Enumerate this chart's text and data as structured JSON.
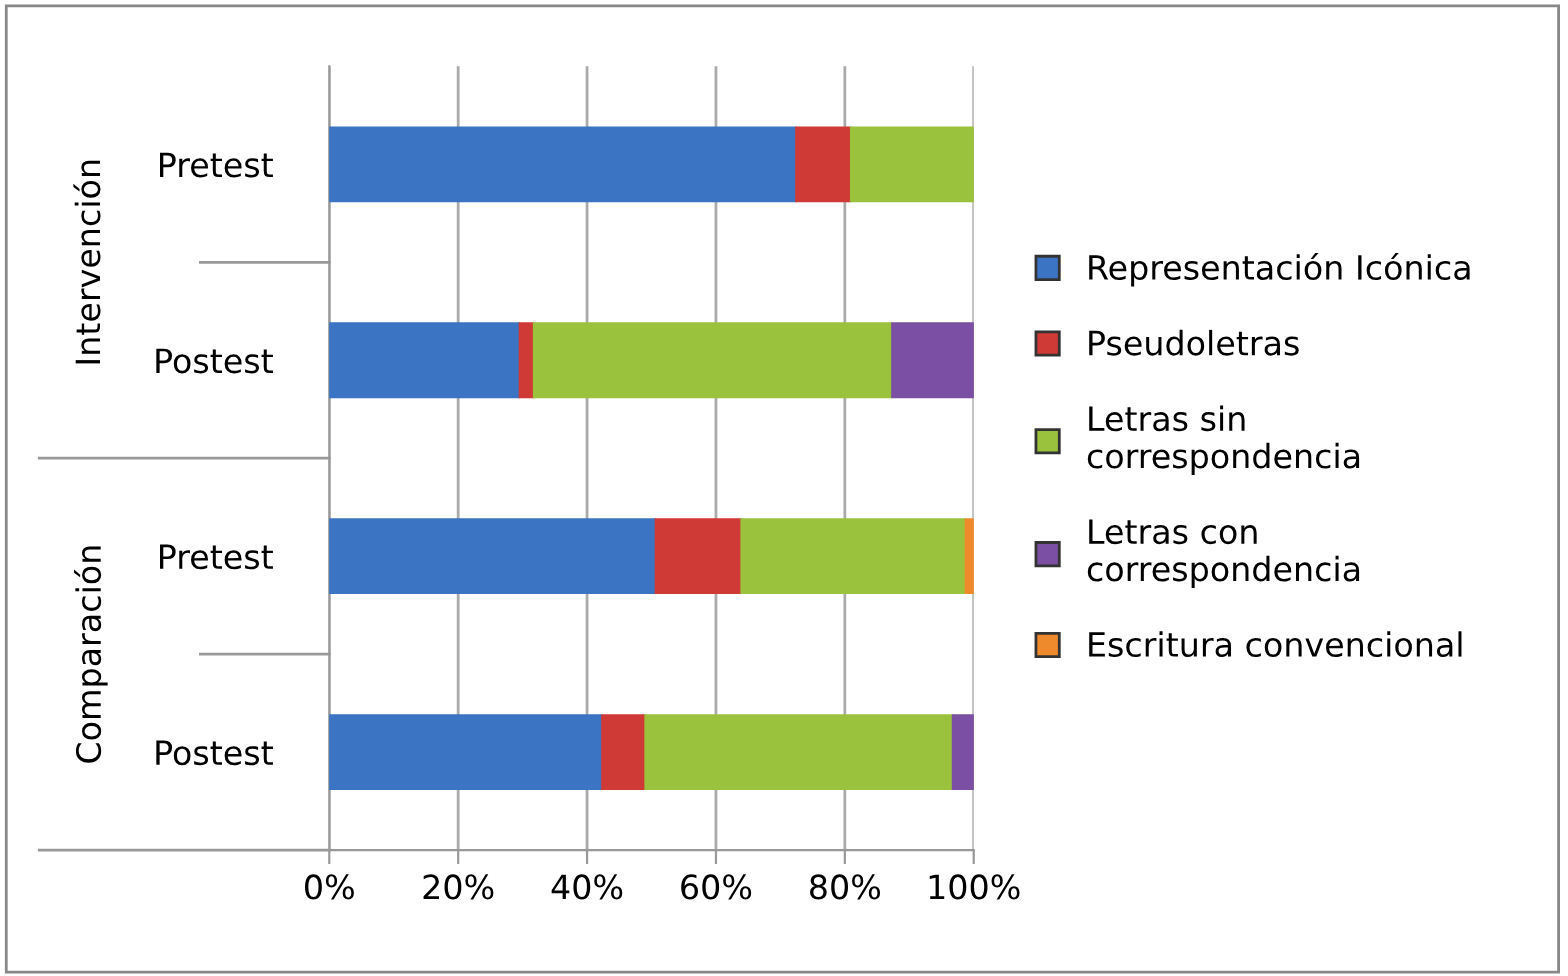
{
  "chart_data": {
    "type": "bar",
    "orientation": "horizontal",
    "stacked": true,
    "categories": [
      "Pretest",
      "Postest",
      "Pretest",
      "Postest"
    ],
    "annotations": [
      "Intervención",
      "Comparación"
    ],
    "series": [
      {
        "name": "Representación Icónica",
        "color": "#3b74c2",
        "values": [
          72.4,
          29.5,
          50.6,
          42.3
        ]
      },
      {
        "name": "Pseudoletras",
        "color": "#d03a36",
        "values": [
          8.5,
          2.2,
          13.3,
          6.7
        ]
      },
      {
        "name": "Letras sin\ncorrespondencia",
        "color": "#9bc23c",
        "values": [
          19.1,
          55.6,
          34.8,
          47.7
        ]
      },
      {
        "name": "Letras con\ncorrespondencia",
        "color": "#7b4fa3",
        "values": [
          null,
          12.7,
          null,
          3.3
        ]
      },
      {
        "name": "Escritura convencional",
        "color": "#ef8a2c",
        "values": [
          null,
          null,
          1.3,
          null
        ]
      }
    ],
    "xlim": [
      0,
      100
    ],
    "xticks": [
      {
        "value": 0,
        "label": "0%"
      },
      {
        "value": 20,
        "label": "20%"
      },
      {
        "value": 40,
        "label": "40%"
      },
      {
        "value": 60,
        "label": "60%"
      },
      {
        "value": 80,
        "label": "80%"
      },
      {
        "value": 100,
        "label": "100%"
      }
    ],
    "grid": "x",
    "legend": "right"
  }
}
